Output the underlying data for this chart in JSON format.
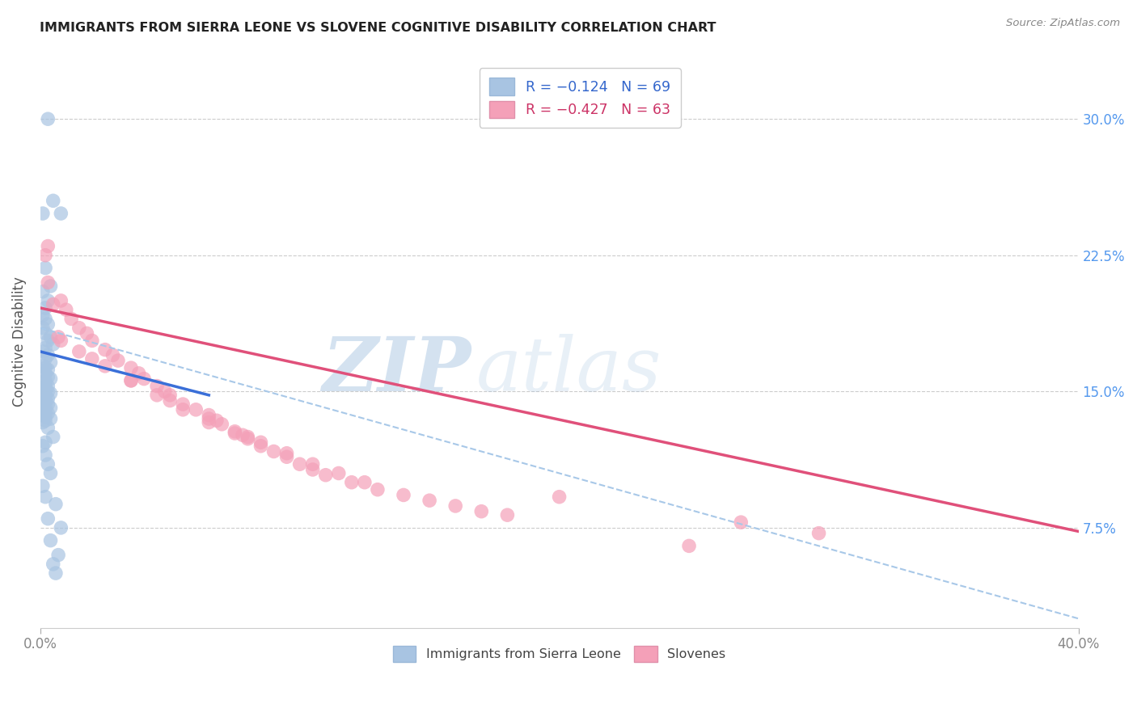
{
  "title": "IMMIGRANTS FROM SIERRA LEONE VS SLOVENE COGNITIVE DISABILITY CORRELATION CHART",
  "source": "Source: ZipAtlas.com",
  "ylabel": "Cognitive Disability",
  "right_yticks": [
    "30.0%",
    "22.5%",
    "15.0%",
    "7.5%"
  ],
  "right_ytick_vals": [
    0.3,
    0.225,
    0.15,
    0.075
  ],
  "xlim": [
    0.0,
    0.4
  ],
  "ylim": [
    0.02,
    0.335
  ],
  "legend1_label": "R = −0.124   N = 69",
  "legend2_label": "R = −0.427   N = 63",
  "legend_xlabel": "Immigrants from Sierra Leone",
  "legend_xlabel2": "Slovenes",
  "blue_color": "#a8c4e2",
  "pink_color": "#f4a0b8",
  "blue_line_color": "#3a6fd8",
  "pink_line_color": "#e0507a",
  "dashed_line_color": "#a8c8e8",
  "blue_scatter_x": [
    0.003,
    0.005,
    0.001,
    0.008,
    0.002,
    0.004,
    0.001,
    0.003,
    0.002,
    0.001,
    0.002,
    0.003,
    0.001,
    0.002,
    0.004,
    0.003,
    0.005,
    0.002,
    0.001,
    0.003,
    0.002,
    0.004,
    0.001,
    0.002,
    0.003,
    0.001,
    0.002,
    0.003,
    0.004,
    0.002,
    0.001,
    0.002,
    0.003,
    0.001,
    0.002,
    0.003,
    0.004,
    0.002,
    0.001,
    0.003,
    0.002,
    0.001,
    0.003,
    0.002,
    0.004,
    0.001,
    0.002,
    0.003,
    0.001,
    0.002,
    0.004,
    0.002,
    0.001,
    0.003,
    0.005,
    0.002,
    0.001,
    0.002,
    0.003,
    0.004,
    0.001,
    0.002,
    0.006,
    0.003,
    0.008,
    0.004,
    0.007,
    0.005,
    0.006
  ],
  "blue_scatter_y": [
    0.3,
    0.255,
    0.248,
    0.248,
    0.218,
    0.208,
    0.205,
    0.2,
    0.196,
    0.192,
    0.19,
    0.187,
    0.185,
    0.182,
    0.18,
    0.178,
    0.176,
    0.174,
    0.172,
    0.17,
    0.168,
    0.166,
    0.164,
    0.163,
    0.162,
    0.161,
    0.16,
    0.158,
    0.157,
    0.156,
    0.155,
    0.154,
    0.153,
    0.152,
    0.151,
    0.15,
    0.149,
    0.148,
    0.147,
    0.146,
    0.145,
    0.144,
    0.143,
    0.142,
    0.141,
    0.14,
    0.139,
    0.138,
    0.137,
    0.136,
    0.135,
    0.134,
    0.133,
    0.13,
    0.125,
    0.122,
    0.12,
    0.115,
    0.11,
    0.105,
    0.098,
    0.092,
    0.088,
    0.08,
    0.075,
    0.068,
    0.06,
    0.055,
    0.05
  ],
  "pink_scatter_x": [
    0.002,
    0.003,
    0.005,
    0.003,
    0.008,
    0.01,
    0.012,
    0.015,
    0.018,
    0.02,
    0.025,
    0.028,
    0.03,
    0.035,
    0.038,
    0.04,
    0.045,
    0.048,
    0.05,
    0.055,
    0.06,
    0.065,
    0.068,
    0.07,
    0.075,
    0.078,
    0.08,
    0.085,
    0.09,
    0.095,
    0.1,
    0.105,
    0.11,
    0.12,
    0.13,
    0.14,
    0.15,
    0.16,
    0.17,
    0.18,
    0.007,
    0.015,
    0.025,
    0.035,
    0.045,
    0.055,
    0.065,
    0.075,
    0.085,
    0.095,
    0.105,
    0.115,
    0.125,
    0.008,
    0.02,
    0.035,
    0.05,
    0.065,
    0.08,
    0.2,
    0.27,
    0.3,
    0.25
  ],
  "pink_scatter_y": [
    0.225,
    0.23,
    0.198,
    0.21,
    0.2,
    0.195,
    0.19,
    0.185,
    0.182,
    0.178,
    0.173,
    0.17,
    0.167,
    0.163,
    0.16,
    0.157,
    0.153,
    0.15,
    0.148,
    0.143,
    0.14,
    0.137,
    0.134,
    0.132,
    0.128,
    0.126,
    0.124,
    0.12,
    0.117,
    0.114,
    0.11,
    0.107,
    0.104,
    0.1,
    0.096,
    0.093,
    0.09,
    0.087,
    0.084,
    0.082,
    0.18,
    0.172,
    0.164,
    0.156,
    0.148,
    0.14,
    0.133,
    0.127,
    0.122,
    0.116,
    0.11,
    0.105,
    0.1,
    0.178,
    0.168,
    0.156,
    0.145,
    0.135,
    0.125,
    0.092,
    0.078,
    0.072,
    0.065
  ],
  "blue_line_x": [
    0.0,
    0.065
  ],
  "blue_line_y": [
    0.172,
    0.148
  ],
  "pink_line_x": [
    0.0,
    0.4
  ],
  "pink_line_y": [
    0.196,
    0.073
  ],
  "dashed_line_x": [
    0.0,
    0.4
  ],
  "dashed_line_y": [
    0.185,
    0.025
  ]
}
